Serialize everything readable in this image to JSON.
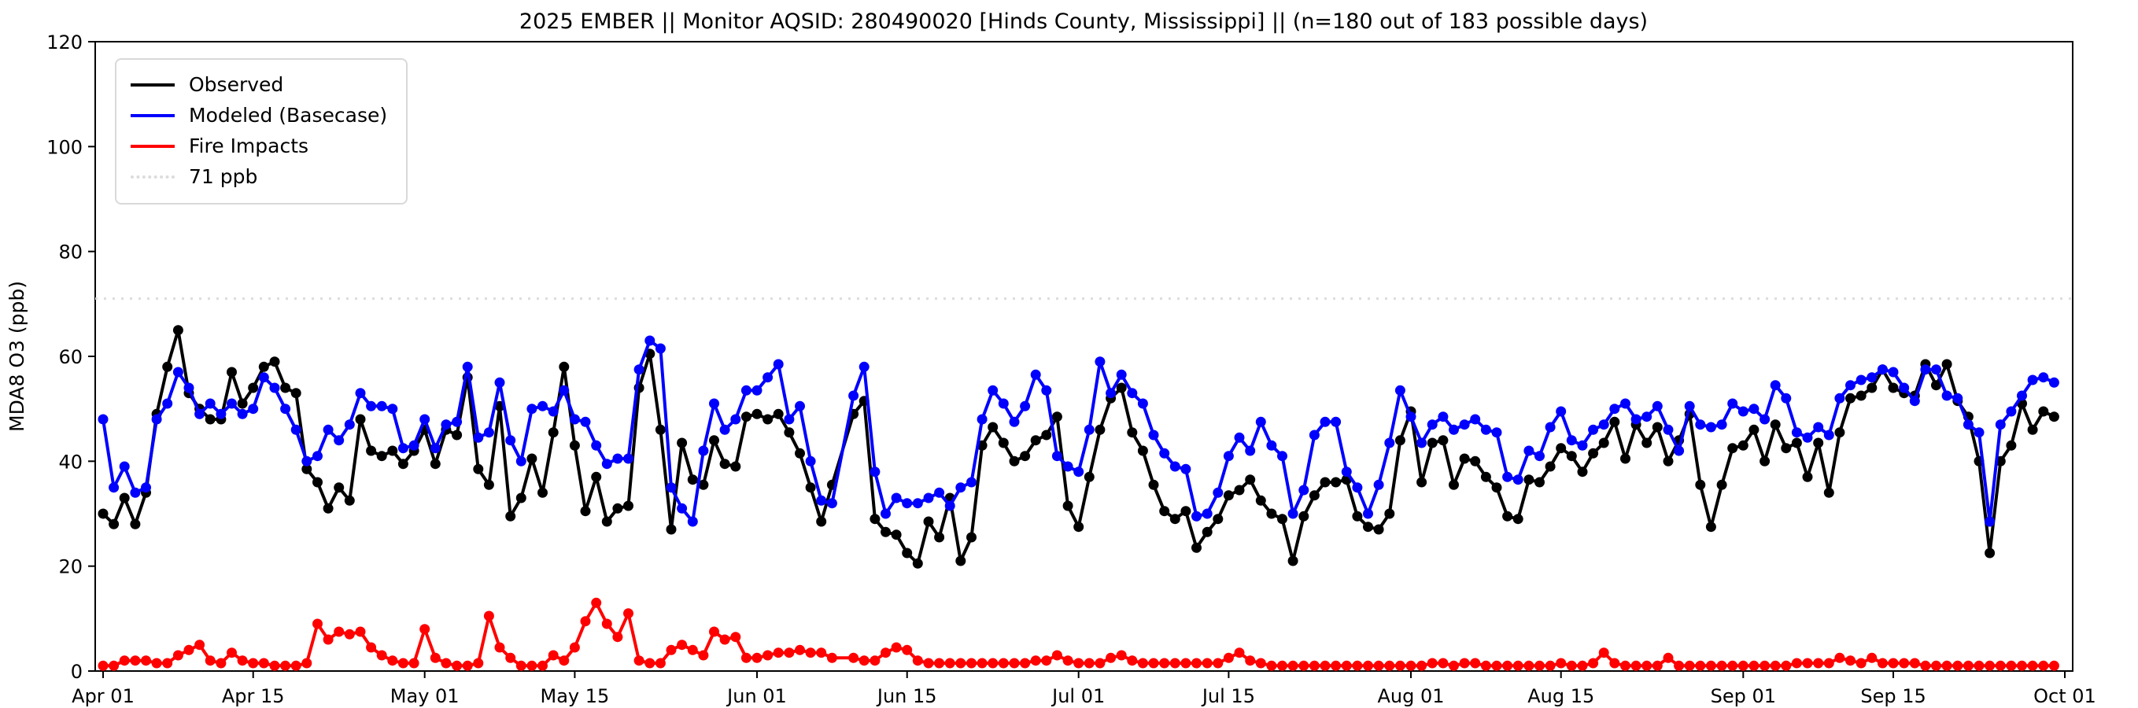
{
  "title": "2025 EMBER || Monitor AQSID: 280490020 [Hinds County, Mississippi] || (n=180 out of 183 possible days)",
  "chart_data": {
    "type": "line",
    "title": "2025 EMBER || Monitor AQSID: 280490020 [Hinds County, Mississippi] || (n=180 out of 183 possible days)",
    "ylabel": "MDA8 O3 (ppb)",
    "ylim": [
      0,
      120
    ],
    "yticks": [
      0,
      20,
      40,
      60,
      80,
      100,
      120
    ],
    "grid": false,
    "legend_position": "upper-left",
    "threshold": {
      "value": 71,
      "label": "71 ppb",
      "color": "#dcdcdc",
      "style": "dotted"
    },
    "xticks": [
      {
        "day": 0,
        "label": "Apr 01"
      },
      {
        "day": 14,
        "label": "Apr 15"
      },
      {
        "day": 30,
        "label": "May 01"
      },
      {
        "day": 44,
        "label": "May 15"
      },
      {
        "day": 61,
        "label": "Jun 01"
      },
      {
        "day": 75,
        "label": "Jun 15"
      },
      {
        "day": 91,
        "label": "Jul 01"
      },
      {
        "day": 105,
        "label": "Jul 15"
      },
      {
        "day": 122,
        "label": "Aug 01"
      },
      {
        "day": 136,
        "label": "Aug 15"
      },
      {
        "day": 153,
        "label": "Sep 01"
      },
      {
        "day": 167,
        "label": "Sep 15"
      },
      {
        "day": 183,
        "label": "Oct 01"
      }
    ],
    "x_days_total": 183,
    "x_days_plotted": 180,
    "series": [
      {
        "name": "Observed",
        "color": "#000000",
        "values": [
          30,
          28,
          33,
          28,
          34,
          49,
          58,
          65,
          53,
          50,
          48,
          48,
          57,
          51,
          54,
          58,
          59,
          54,
          53,
          38.5,
          36,
          31,
          35,
          32.5,
          48,
          42,
          41,
          42,
          39.5,
          42,
          46,
          39.5,
          46,
          45,
          56,
          38.5,
          35.5,
          50.5,
          29.5,
          33,
          40.5,
          34,
          45.5,
          58,
          43,
          30.5,
          37,
          28.5,
          31,
          31.5,
          54,
          60.5,
          46,
          27,
          43.5,
          36.5,
          35.5,
          44,
          39.5,
          39,
          48.5,
          49,
          48,
          49,
          45.5,
          41.5,
          35,
          28.5,
          35.5,
          null,
          49,
          51.5,
          29,
          26.5,
          26,
          22.5,
          20.5,
          28.5,
          25.5,
          33,
          21,
          25.5,
          43,
          46.5,
          43.5,
          40,
          41,
          44,
          45,
          48.5,
          31.5,
          27.5,
          37,
          46,
          52,
          54,
          45.5,
          42,
          35.5,
          30.5,
          29,
          30.5,
          23.5,
          26.5,
          29,
          33.5,
          34.5,
          36.5,
          32.5,
          30,
          29,
          21,
          29.5,
          33.5,
          36,
          36,
          36.5,
          29.5,
          27.5,
          27,
          30,
          44,
          49.5,
          36,
          43.5,
          44,
          35.5,
          40.5,
          40,
          37,
          35,
          29.5,
          29,
          36.5,
          36,
          39,
          42.5,
          41,
          38,
          41.5,
          43.5,
          47.5,
          40.5,
          47,
          43.5,
          46.5,
          40,
          44,
          49,
          35.5,
          27.5,
          35.5,
          42.5,
          43,
          46,
          40,
          47,
          42.5,
          43.5,
          37,
          43.5,
          34,
          45.5,
          52,
          52.5,
          54,
          57.5,
          54,
          53,
          52.5,
          58.5,
          54.5,
          58.5,
          51.5,
          48.5,
          40,
          22.5,
          40,
          43,
          51,
          46,
          49.5,
          48.5
        ]
      },
      {
        "name": "Modeled (Basecase)",
        "color": "#0000ff",
        "values": [
          48,
          35,
          39,
          34,
          35,
          48,
          51,
          57,
          54,
          49,
          51,
          49,
          51,
          49,
          50,
          56,
          54,
          50,
          46,
          40,
          41,
          46,
          44,
          47,
          53,
          50.5,
          50.5,
          50,
          42.5,
          43,
          48,
          42.5,
          47,
          47.5,
          58,
          44.5,
          45.5,
          55,
          44,
          40,
          50,
          50.5,
          49.5,
          53.5,
          48,
          47.5,
          43,
          39.5,
          40.5,
          40.5,
          57.5,
          63,
          61.5,
          35,
          31,
          28.5,
          42,
          51,
          46,
          48,
          53.5,
          53.5,
          56,
          58.5,
          48,
          50.5,
          40,
          32.5,
          32,
          null,
          52.5,
          58,
          38,
          30,
          33,
          32,
          32,
          33,
          34,
          31.5,
          35,
          36,
          48,
          53.5,
          51,
          47.5,
          50.5,
          56.5,
          53.5,
          41,
          39,
          38,
          46,
          59,
          53,
          56.5,
          53,
          51,
          45,
          41.5,
          39,
          38.5,
          29.5,
          30,
          34,
          41,
          44.5,
          42,
          47.5,
          43,
          41,
          30,
          34.5,
          45,
          47.5,
          47.5,
          38,
          35,
          30,
          35.5,
          43.5,
          53.5,
          48.5,
          43.5,
          47,
          48.5,
          46,
          47,
          48,
          46,
          45.5,
          37,
          36.5,
          42,
          41,
          46.5,
          49.5,
          44,
          43,
          46,
          47,
          50,
          51,
          48,
          48.5,
          50.5,
          46,
          42,
          50.5,
          47,
          46.5,
          47,
          51,
          49.5,
          50,
          48,
          54.5,
          52,
          45.5,
          44.5,
          46.5,
          45,
          52,
          54.5,
          55.5,
          56,
          57.5,
          57,
          54,
          51.5,
          57.5,
          57.5,
          52.5,
          52,
          47,
          45.5,
          28.5,
          47,
          49.5,
          52.5,
          55.5,
          56,
          55
        ]
      },
      {
        "name": "Fire Impacts",
        "color": "#ff0000",
        "values": [
          1,
          1,
          2,
          2,
          2,
          1.5,
          1.5,
          3,
          4,
          5,
          2,
          1.5,
          3.5,
          2,
          1.5,
          1.5,
          1,
          1,
          1,
          1.5,
          9,
          6,
          7.5,
          7,
          7.5,
          4.5,
          3,
          2,
          1.5,
          1.5,
          8,
          2.5,
          1.5,
          1,
          1,
          1.5,
          10.5,
          4.5,
          2.5,
          1,
          1,
          1,
          3,
          2,
          4.5,
          9.5,
          13,
          9,
          6.5,
          11,
          2,
          1.5,
          1.5,
          4,
          5,
          4,
          3,
          7.5,
          6,
          6.5,
          2.5,
          2.5,
          3,
          3.5,
          3.5,
          4,
          3.5,
          3.5,
          2.5,
          null,
          2.5,
          2,
          2,
          3.5,
          4.5,
          4,
          2,
          1.5,
          1.5,
          1.5,
          1.5,
          1.5,
          1.5,
          1.5,
          1.5,
          1.5,
          1.5,
          2,
          2,
          3,
          2,
          1.5,
          1.5,
          1.5,
          2.5,
          3,
          2,
          1.5,
          1.5,
          1.5,
          1.5,
          1.5,
          1.5,
          1.5,
          1.5,
          2.5,
          3.5,
          2,
          1.5,
          1,
          1,
          1,
          1,
          1,
          1,
          1,
          1,
          1,
          1,
          1,
          1,
          1,
          1,
          1,
          1.5,
          1.5,
          1,
          1.5,
          1.5,
          1,
          1,
          1,
          1,
          1,
          1,
          1,
          1.5,
          1,
          1,
          1.5,
          3.5,
          1.5,
          1,
          1,
          1,
          1,
          2.5,
          1,
          1,
          1,
          1,
          1,
          1,
          1,
          1,
          1,
          1,
          1,
          1.5,
          1.5,
          1.5,
          1.5,
          2.5,
          2,
          1.5,
          2.5,
          1.5,
          1.5,
          1.5,
          1.5,
          1,
          1,
          1,
          1,
          1,
          1,
          1,
          1,
          1,
          1,
          1,
          1,
          1
        ]
      }
    ]
  }
}
